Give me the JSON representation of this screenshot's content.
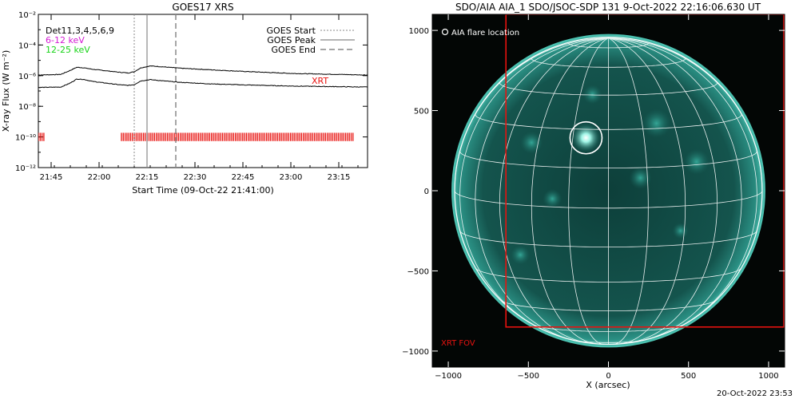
{
  "colors": {
    "xrt": "#e8120f",
    "band_low": "#d41ad4",
    "band_high": "#18d418",
    "sun_fill": "#0f4a44",
    "sun_bright": "#5fd9c6",
    "grid": "#ffffff"
  },
  "footer": {
    "timestamp": "20-Oct-2022 23:53"
  },
  "chart_data": [
    {
      "type": "line",
      "title": "GOES17 XRS",
      "xlabel": "Start Time (09-Oct-22 21:41:00)",
      "ylabel": "X-ray Flux (W m⁻²)",
      "y_scale": "log",
      "ylim_exp": [
        -12,
        -2
      ],
      "xlim": [
        "21:41",
        "23:24"
      ],
      "x_ticks": [
        "21:45",
        "22:00",
        "22:15",
        "22:30",
        "22:45",
        "23:00",
        "23:15"
      ],
      "y_ticks": [
        "10⁻²",
        "10⁻⁴",
        "10⁻⁶",
        "10⁻⁸",
        "10⁻¹⁰",
        "10⁻¹²"
      ],
      "legend_left": {
        "detectors": "Det11,3,4,5,6,9",
        "band_low": "6-12 keV",
        "band_high": "12-25 keV"
      },
      "legend_right": {
        "start": "GOES Start",
        "peak": "GOES Peak",
        "end": "GOES End"
      },
      "xrt_label": "XRT",
      "markers": {
        "start": "22:11",
        "peak": "22:15",
        "end": "22:24"
      },
      "series": [
        {
          "name": "6-12 keV",
          "x": [
            "21:41",
            "21:48",
            "21:51",
            "21:53",
            "21:55",
            "21:58",
            "22:02",
            "22:06",
            "22:09",
            "22:11",
            "22:13",
            "22:16",
            "22:19",
            "22:25",
            "22:35",
            "22:45",
            "23:00",
            "23:24"
          ],
          "y": [
            1.1e-06,
            1.2e-06,
            2.2e-06,
            3.5e-06,
            3.3e-06,
            2.6e-06,
            2.1e-06,
            1.7e-06,
            1.5e-06,
            1.8e-06,
            3.2e-06,
            4.3e-06,
            3.9e-06,
            3.1e-06,
            2.4e-06,
            1.9e-06,
            1.4e-06,
            1.1e-06
          ]
        },
        {
          "name": "12-25 keV",
          "x": [
            "21:41",
            "21:48",
            "21:51",
            "21:53",
            "21:55",
            "21:58",
            "22:02",
            "22:06",
            "22:09",
            "22:11",
            "22:13",
            "22:16",
            "22:19",
            "22:25",
            "22:35",
            "22:45",
            "23:00",
            "23:24"
          ],
          "y": [
            1.7e-07,
            1.8e-07,
            3.3e-07,
            6e-07,
            5.8e-07,
            4.2e-07,
            3.3e-07,
            2.6e-07,
            2.3e-07,
            2.6e-07,
            4.5e-07,
            5.5e-07,
            4.8e-07,
            3.7e-07,
            2.9e-07,
            2.5e-07,
            2.1e-07,
            1.8e-07
          ]
        }
      ],
      "xrt_coverage": [
        [
          "21:41",
          "21:43"
        ],
        [
          "22:07",
          "23:20"
        ]
      ]
    },
    {
      "type": "image",
      "title": "SDO/AIA AIA_1 SDO/JSOC-SDP 131   9-Oct-2022 22:16:06.630 UT",
      "xlabel": "X (arcsec)",
      "legend": "AIA flare location",
      "fov_label": "XRT FOV",
      "xlim": [
        -1100,
        1100
      ],
      "ylim": [
        -1100,
        1100
      ],
      "x_ticks": [
        "−1000",
        "−500",
        "0",
        "500",
        "1000"
      ],
      "y_ticks": [
        "1000",
        "500",
        "0",
        "−500",
        "−1000"
      ],
      "solar_radius_arcsec": 960,
      "flare_location": {
        "x": -140,
        "y": 330,
        "radius": 100
      },
      "xrt_fov": {
        "x_min": -640,
        "y_max": 1100,
        "x_max": 1100,
        "y_min": -850
      }
    }
  ]
}
